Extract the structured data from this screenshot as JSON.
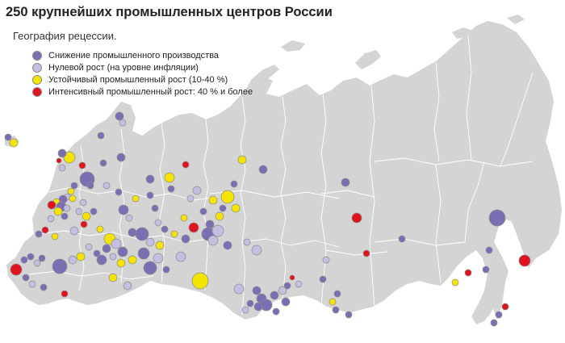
{
  "title": "250 крупнейших промышленных центров России",
  "subtitle": "География рецессии.",
  "legend": [
    {
      "label": "Снижение промышленного производства",
      "color": "#7b6fb4"
    },
    {
      "label": "Нулевой рост (на уровне инфляции)",
      "color": "#c4bfe0"
    },
    {
      "label": "Устойчивый промышленный рост (10-40 %)",
      "color": "#f5e400"
    },
    {
      "label": "Интенсивный промышленный рост: 40 % и более",
      "color": "#e0141e"
    }
  ],
  "colors": {
    "land": "#d4d4d4",
    "borders": "#ffffff",
    "decline": "#7b6fb4",
    "zero": "#c4bfe0",
    "steady": "#f5e400",
    "intense": "#e0141e"
  }
}
